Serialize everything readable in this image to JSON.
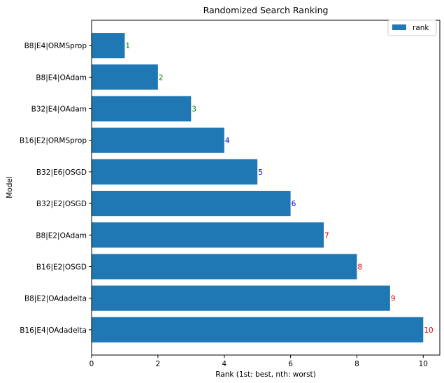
{
  "chart_data": {
    "type": "bar",
    "orientation": "horizontal",
    "title": "Randomized Search Ranking",
    "xlabel": "Rank (1st: best, nth: worst)",
    "ylabel": "Model",
    "categories": [
      "B8|E4|ORMSprop",
      "B8|E4|OAdam",
      "B32|E4|OAdam",
      "B16|E2|ORMSprop",
      "B32|E6|OSGD",
      "B32|E2|OSGD",
      "B8|E2|OAdam",
      "B16|E2|OSGD",
      "B8|E2|OAdadelta",
      "B16|E4|OAdadelta"
    ],
    "series": [
      {
        "name": "rank",
        "values": [
          1,
          2,
          3,
          4,
          5,
          6,
          7,
          8,
          9,
          10
        ],
        "color": "#1f77b4"
      }
    ],
    "data_labels": [
      "1",
      "2",
      "3",
      "4",
      "5",
      "6",
      "7",
      "8",
      "9",
      "10"
    ],
    "label_colors": [
      "#008000",
      "#008000",
      "#008000",
      "#0000cd",
      "#0000cd",
      "#0000cd",
      "#e00000",
      "#e00000",
      "#e00000",
      "#e00000"
    ],
    "xlim": [
      0,
      10.5
    ],
    "xticks": [
      0,
      2,
      4,
      6,
      8,
      10
    ],
    "grid": false,
    "legend": {
      "entries": [
        "rank"
      ],
      "placement": "top-right"
    }
  }
}
